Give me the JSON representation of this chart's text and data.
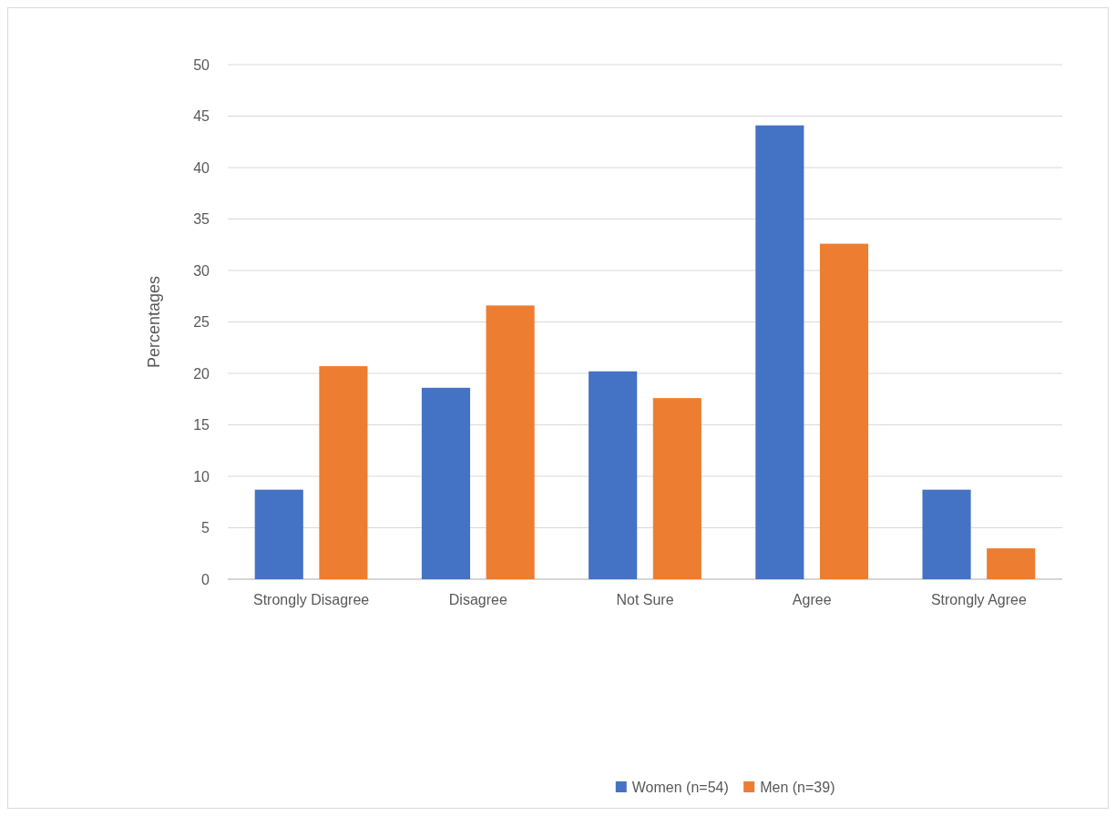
{
  "chart_data": {
    "type": "bar",
    "ylabel": "Percentages",
    "categories": [
      "Strongly Disagree",
      "Disagree",
      "Not Sure",
      "Agree",
      "Strongly Agree"
    ],
    "series": [
      {
        "name": "Women (n=54)",
        "color": "#4472c4",
        "values": [
          8.7,
          18.6,
          20.2,
          44.1,
          8.7
        ]
      },
      {
        "name": "Men (n=39)",
        "color": "#ed7d31",
        "values": [
          20.7,
          26.6,
          17.6,
          32.6,
          3.0
        ]
      }
    ],
    "ylim": [
      0,
      50
    ],
    "yticks": [
      0,
      5,
      10,
      15,
      20,
      25,
      30,
      35,
      40,
      45,
      50
    ],
    "grid": "y",
    "legend": "bottom"
  }
}
